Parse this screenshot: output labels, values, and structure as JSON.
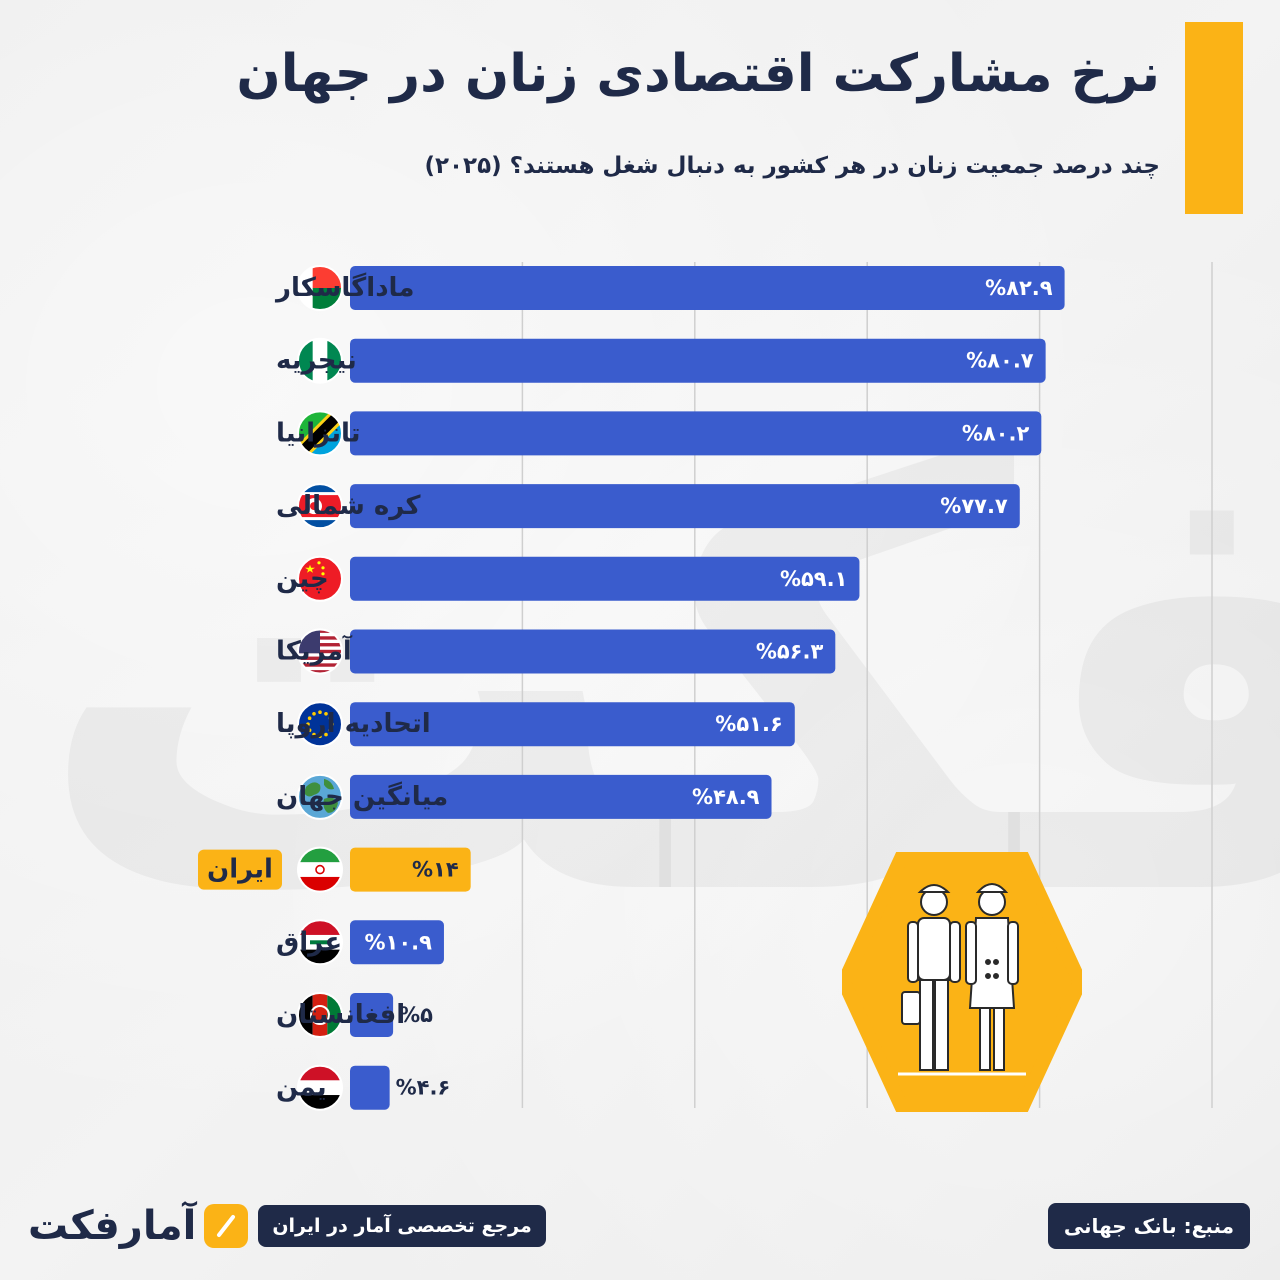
{
  "header": {
    "title": "نرخ مشارکت اقتصادی زنان در جهان",
    "subtitle": "چند درصد جمعیت زنان در هر کشور به دنبال شغل هستند؟ (۲۰۲۵)"
  },
  "colors": {
    "bar": "#3a5ccd",
    "highlight": "#fbb316",
    "navy": "#1f2a48",
    "accent": "#fbb316"
  },
  "chart_data": {
    "type": "bar",
    "orientation": "horizontal",
    "categories": [
      "ماداگاسکار",
      "نیجریه",
      "تانزانیا",
      "کره شمالی",
      "چین",
      "آمریکا",
      "اتحادیه اروپا",
      "میانگین جهان",
      "ایران",
      "عراق",
      "افغانستان",
      "یمن"
    ],
    "values": [
      82.9,
      80.7,
      80.2,
      77.7,
      59.1,
      56.3,
      51.6,
      48.9,
      14,
      10.9,
      5,
      4.6
    ],
    "value_labels": [
      "%۸۲.۹",
      "%۸۰.۷",
      "%۸۰.۲",
      "%۷۷.۷",
      "%۵۹.۱",
      "%۵۶.۳",
      "%۵۱.۶",
      "%۴۸.۹",
      "%۱۴",
      "%۱۰.۹",
      "%۵",
      "%۴.۶"
    ],
    "flags": [
      "madagascar-flag",
      "nigeria-flag",
      "tanzania-flag",
      "north-korea-flag",
      "china-flag",
      "usa-flag",
      "eu-flag",
      "globe-icon",
      "iran-flag",
      "iraq-flag",
      "afghanistan-flag",
      "yemen-flag"
    ],
    "highlight_category": "ایران",
    "xlim": [
      0,
      100
    ],
    "grid": true,
    "title": "",
    "xlabel": "",
    "ylabel": ""
  },
  "footer": {
    "logo": "آمارفکت",
    "tagline": "مرجع تخصصی آمار در ایران",
    "source": "منبع: بانک جهانی"
  },
  "illustration": "women-workers-icon"
}
